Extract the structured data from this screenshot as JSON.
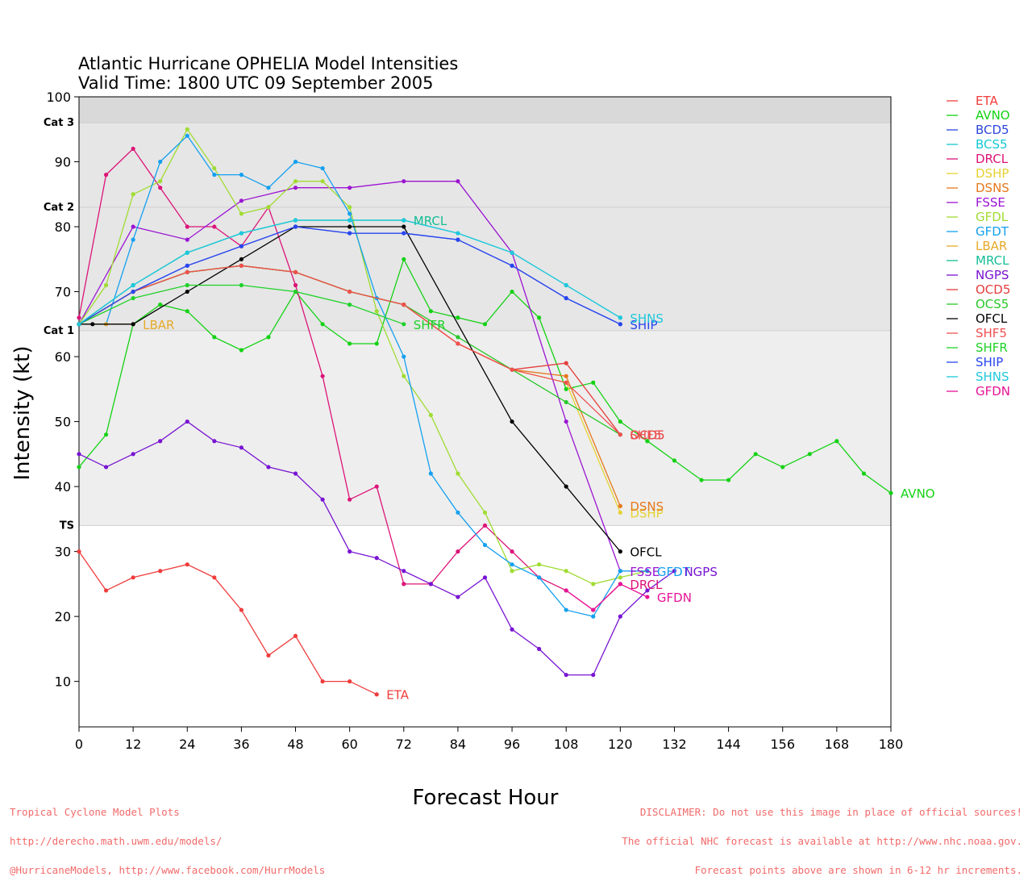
{
  "footer": {
    "left": [
      "Tropical Cyclone Model Plots",
      "http://derecho.math.uwm.edu/models/",
      "@HurricaneModels, http://www.facebook.com/HurrModels"
    ],
    "right": [
      "DISCLAIMER: Do not use this image in place of official sources!",
      "The official NHC forecast is available at http://www.nhc.noaa.gov.",
      "Forecast points above are shown in 6-12 hr increments."
    ]
  },
  "chart_data": {
    "type": "line",
    "title": "Atlantic Hurricane OPHELIA Model Intensities",
    "subtitle": "Valid Time: 1800 UTC 09 September 2005",
    "xlabel": "Forecast Hour",
    "ylabel": "Intensity (kt)",
    "xlim": [
      0,
      180
    ],
    "ylim": [
      3,
      100
    ],
    "x_ticks": [
      0,
      12,
      24,
      36,
      48,
      60,
      72,
      84,
      96,
      108,
      120,
      132,
      144,
      156,
      168,
      180
    ],
    "y_ticks": [
      10,
      20,
      30,
      40,
      50,
      60,
      70,
      80,
      90,
      100
    ],
    "categories_bands": [
      {
        "label": "TS",
        "from": 34,
        "to": 64,
        "color": "#eeeeee"
      },
      {
        "label": "Cat 1",
        "from": 64,
        "to": 83,
        "color": "#e6e6e6"
      },
      {
        "label": "Cat 2",
        "from": 83,
        "to": 96,
        "color": "#e6e6e6"
      },
      {
        "label": "Cat 3",
        "from": 96,
        "to": 100,
        "color": "#d9d9d9"
      }
    ],
    "legend_position": "right",
    "series": [
      {
        "name": "ETA",
        "color": "#f03c3c",
        "x": [
          0,
          6,
          12,
          18,
          24,
          30,
          36,
          42,
          48,
          54,
          60,
          66
        ],
        "values": [
          30,
          24,
          26,
          27,
          28,
          26,
          21,
          14,
          17,
          10,
          10,
          8
        ],
        "end_label": "ETA"
      },
      {
        "name": "AVNO",
        "color": "#14d214",
        "x": [
          0,
          6,
          12,
          18,
          24,
          30,
          36,
          42,
          48,
          54,
          60,
          66,
          72,
          78,
          84,
          90,
          96,
          102,
          108,
          114,
          120,
          126,
          132,
          138,
          144,
          150,
          156,
          162,
          168,
          174,
          180
        ],
        "values": [
          43,
          48,
          65,
          68,
          67,
          63,
          61,
          63,
          70,
          65,
          62,
          62,
          75,
          67,
          66,
          65,
          70,
          66,
          55,
          56,
          50,
          47,
          44,
          41,
          41,
          45,
          43,
          45,
          47,
          42,
          39
        ],
        "end_label": "AVNO"
      },
      {
        "name": "BCD5",
        "color": "#2d46dc",
        "x": [
          0,
          12,
          24,
          36,
          48,
          60,
          72,
          84,
          96,
          108,
          120
        ],
        "values": [
          65,
          70,
          74,
          77,
          80,
          79,
          79,
          78,
          74,
          69,
          65
        ],
        "end_label": ""
      },
      {
        "name": "BCS5",
        "color": "#14c8d2",
        "x": [
          0,
          12,
          24,
          36,
          48,
          60,
          72,
          84,
          96,
          108,
          120
        ],
        "values": [
          65,
          71,
          76,
          79,
          81,
          81,
          81,
          79,
          76,
          71,
          66
        ],
        "end_label": ""
      },
      {
        "name": "DRCL",
        "color": "#dc1478",
        "x": [
          0,
          6,
          12,
          18,
          24,
          30,
          36,
          42,
          48,
          54,
          60,
          66,
          72,
          78,
          84,
          90,
          96,
          102,
          108,
          114,
          120
        ],
        "values": [
          66,
          88,
          92,
          86,
          80,
          80,
          77,
          83,
          71,
          57,
          38,
          40,
          25,
          25,
          30,
          34,
          30,
          26,
          24,
          21,
          25
        ],
        "end_label": "DRCL"
      },
      {
        "name": "DSHP",
        "color": "#e6d232",
        "x": [
          0,
          12,
          24,
          36,
          48,
          60,
          72,
          84,
          96,
          108,
          120
        ],
        "values": [
          65,
          70,
          73,
          74,
          73,
          70,
          68,
          62,
          58,
          56,
          36
        ],
        "end_label": "DSHP"
      },
      {
        "name": "DSNS",
        "color": "#e6781e",
        "x": [
          0,
          12,
          24,
          36,
          48,
          60,
          72,
          84,
          96,
          108,
          120
        ],
        "values": [
          65,
          70,
          73,
          74,
          73,
          70,
          68,
          62,
          58,
          57,
          37
        ],
        "end_label": "DSNS"
      },
      {
        "name": "FSSE",
        "color": "#9b14d2",
        "x": [
          0,
          12,
          24,
          36,
          48,
          60,
          72,
          84,
          96,
          108,
          120
        ],
        "values": [
          65,
          80,
          78,
          84,
          86,
          86,
          87,
          87,
          76,
          50,
          27
        ],
        "end_label": "FSSE"
      },
      {
        "name": "GFDL",
        "color": "#a0dc32",
        "x": [
          0,
          6,
          12,
          18,
          24,
          30,
          36,
          42,
          48,
          54,
          60,
          66,
          72,
          78,
          84,
          90,
          96,
          102,
          108,
          114,
          120,
          126
        ],
        "values": [
          65,
          71,
          85,
          87,
          95,
          89,
          82,
          83,
          87,
          87,
          83,
          67,
          57,
          51,
          42,
          36,
          27,
          28,
          27,
          25,
          26,
          27
        ],
        "end_label": ""
      },
      {
        "name": "GFDT",
        "color": "#14a0f0",
        "x": [
          0,
          6,
          12,
          18,
          24,
          30,
          36,
          42,
          48,
          54,
          60,
          66,
          72,
          78,
          84,
          90,
          96,
          102,
          108,
          114,
          120,
          126
        ],
        "values": [
          65,
          65,
          78,
          90,
          94,
          88,
          88,
          86,
          90,
          89,
          82,
          69,
          60,
          42,
          36,
          31,
          28,
          26,
          21,
          20,
          27,
          27
        ],
        "end_label": "GFDT"
      },
      {
        "name": "LBAR",
        "color": "#e6aa28",
        "x": [
          0,
          6,
          12
        ],
        "values": [
          65,
          65,
          65
        ],
        "end_label": "LBAR"
      },
      {
        "name": "MRCL",
        "color": "#14be96",
        "x": [
          0,
          12,
          24,
          36,
          48,
          60,
          72
        ],
        "values": [
          65,
          71,
          76,
          79,
          81,
          81,
          81
        ],
        "end_label": "MRCL"
      },
      {
        "name": "NGPS",
        "color": "#7814d2",
        "x": [
          0,
          6,
          12,
          18,
          24,
          30,
          36,
          42,
          48,
          54,
          60,
          66,
          72,
          78,
          84,
          90,
          96,
          102,
          108,
          114,
          120,
          126,
          132
        ],
        "values": [
          45,
          43,
          45,
          47,
          50,
          47,
          46,
          43,
          42,
          38,
          30,
          29,
          27,
          25,
          23,
          26,
          18,
          15,
          11,
          11,
          20,
          24,
          27
        ],
        "end_label": "NGPS"
      },
      {
        "name": "OCD5",
        "color": "#e63c3c",
        "x": [
          0,
          12,
          24,
          36,
          48,
          60,
          72,
          84,
          96,
          108,
          120
        ],
        "values": [
          65,
          70,
          73,
          74,
          73,
          70,
          68,
          62,
          58,
          59,
          48
        ],
        "end_label": "OCD5"
      },
      {
        "name": "OCS5",
        "color": "#28c828",
        "x": [
          0,
          12,
          24,
          36,
          48,
          60,
          72,
          84,
          96,
          108,
          120
        ],
        "values": [
          65,
          70,
          73,
          74,
          73,
          70,
          68,
          63,
          58,
          53,
          48
        ],
        "end_label": ""
      },
      {
        "name": "OFCL",
        "color": "#000000",
        "x": [
          0,
          3,
          12,
          24,
          36,
          48,
          60,
          72,
          96,
          108,
          120
        ],
        "values": [
          65,
          65,
          65,
          70,
          75,
          80,
          80,
          80,
          50,
          40,
          30
        ],
        "end_label": "OFCL"
      },
      {
        "name": "SHF5",
        "color": "#f05050",
        "x": [
          0,
          12,
          24,
          36,
          48,
          60,
          72,
          84,
          96,
          108,
          120
        ],
        "values": [
          65,
          70,
          73,
          74,
          73,
          70,
          68,
          62,
          58,
          56,
          48
        ],
        "end_label": "SHF5"
      },
      {
        "name": "SHFR",
        "color": "#1ed228",
        "x": [
          0,
          12,
          24,
          36,
          48,
          60,
          72
        ],
        "values": [
          65,
          69,
          71,
          71,
          70,
          68,
          65
        ],
        "end_label": "SHFR"
      },
      {
        "name": "SHIP",
        "color": "#2846f0",
        "x": [
          0,
          12,
          24,
          36,
          48,
          60,
          72,
          84,
          96,
          108,
          120
        ],
        "values": [
          65,
          70,
          74,
          77,
          80,
          79,
          79,
          78,
          74,
          69,
          65
        ],
        "end_label": "SHIP"
      },
      {
        "name": "SHNS",
        "color": "#1ec8dc",
        "x": [
          0,
          12,
          24,
          36,
          48,
          60,
          72,
          84,
          96,
          108,
          120
        ],
        "values": [
          65,
          71,
          76,
          79,
          81,
          81,
          81,
          79,
          76,
          71,
          66
        ],
        "end_label": "SHNS"
      },
      {
        "name": "GFDN",
        "color": "#e61496",
        "x": [
          108,
          114,
          120,
          126
        ],
        "values": [
          24,
          21,
          25,
          23
        ],
        "end_label": "GFDN"
      }
    ]
  }
}
